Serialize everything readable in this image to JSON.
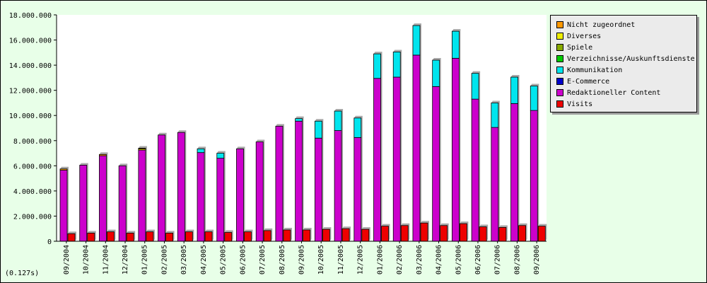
{
  "chart_data": {
    "type": "bar",
    "title": "",
    "xlabel": "",
    "ylabel": "",
    "ylim": [
      0,
      18000000
    ],
    "yticks": [
      "0",
      "2.000.000",
      "4.000.000",
      "6.000.000",
      "8.000.000",
      "10.000.000",
      "12.000.000",
      "14.000.000",
      "16.000.000",
      "18.000.000"
    ],
    "categories": [
      "09/2004",
      "10/2004",
      "11/2004",
      "12/2004",
      "01/2005",
      "02/2005",
      "03/2005",
      "04/2005",
      "05/2005",
      "06/2005",
      "07/2005",
      "08/2005",
      "09/2005",
      "10/2005",
      "11/2005",
      "12/2005",
      "01/2006",
      "02/2006",
      "03/2006",
      "04/2006",
      "05/2006",
      "06/2006",
      "07/2006",
      "08/2006",
      "09/2006"
    ],
    "stacked_series": [
      {
        "name": "Redaktioneller Content",
        "color": "#cc00cc",
        "values": [
          5650000,
          6050000,
          6800000,
          6000000,
          7250000,
          8450000,
          8650000,
          7050000,
          6600000,
          7350000,
          7900000,
          9150000,
          9550000,
          8200000,
          8800000,
          8250000,
          12950000,
          13050000,
          14800000,
          12300000,
          14550000,
          11300000,
          9050000,
          10950000,
          10400000
        ]
      },
      {
        "name": "E-Commerce",
        "color": "#0000cc",
        "values": [
          0,
          0,
          0,
          0,
          0,
          0,
          0,
          0,
          0,
          0,
          0,
          0,
          0,
          0,
          0,
          0,
          0,
          0,
          0,
          0,
          0,
          0,
          0,
          0,
          0
        ]
      },
      {
        "name": "Kommunikation",
        "color": "#00e5ee",
        "values": [
          0,
          0,
          0,
          0,
          0,
          0,
          0,
          300000,
          400000,
          0,
          0,
          0,
          200000,
          1350000,
          1550000,
          1550000,
          1950000,
          2000000,
          2350000,
          2100000,
          2150000,
          2050000,
          1950000,
          2100000,
          1950000
        ]
      },
      {
        "name": "Verzeichnisse/Auskunftsdienste",
        "color": "#00cc00",
        "values": [
          0,
          0,
          0,
          0,
          0,
          0,
          0,
          0,
          0,
          0,
          0,
          0,
          0,
          0,
          0,
          0,
          0,
          0,
          0,
          0,
          0,
          0,
          0,
          0,
          0
        ]
      },
      {
        "name": "Spiele",
        "color": "#88aa00",
        "values": [
          0,
          0,
          0,
          0,
          0,
          0,
          0,
          0,
          0,
          0,
          0,
          0,
          0,
          0,
          0,
          0,
          0,
          0,
          0,
          0,
          0,
          0,
          0,
          0,
          0
        ]
      },
      {
        "name": "Diverses",
        "color": "#eeee00",
        "values": [
          0,
          0,
          0,
          0,
          100000,
          0,
          0,
          0,
          0,
          0,
          0,
          0,
          0,
          0,
          0,
          0,
          0,
          0,
          0,
          0,
          0,
          0,
          0,
          0,
          0
        ]
      },
      {
        "name": "Nicht zugeordnet",
        "color": "#ff9900",
        "values": [
          100000,
          0,
          100000,
          0,
          50000,
          0,
          0,
          0,
          0,
          0,
          0,
          0,
          0,
          0,
          0,
          0,
          0,
          0,
          0,
          0,
          0,
          0,
          0,
          0,
          0
        ]
      }
    ],
    "visits_series": {
      "name": "Visits",
      "color": "#ee0000",
      "values": [
        600000,
        650000,
        750000,
        650000,
        750000,
        650000,
        750000,
        750000,
        700000,
        750000,
        850000,
        900000,
        900000,
        950000,
        1000000,
        950000,
        1200000,
        1250000,
        1450000,
        1250000,
        1400000,
        1150000,
        1100000,
        1250000,
        1200000
      ]
    },
    "legend_placement": "top-right",
    "legend": [
      {
        "label": "Nicht zugeordnet",
        "color": "#ff9900"
      },
      {
        "label": "Diverses",
        "color": "#eeee00"
      },
      {
        "label": "Spiele",
        "color": "#88aa00"
      },
      {
        "label": "Verzeichnisse/Auskunftsdienste",
        "color": "#00cc00"
      },
      {
        "label": "Kommunikation",
        "color": "#00e5ee"
      },
      {
        "label": "E-Commerce",
        "color": "#0000cc"
      },
      {
        "label": "Redaktioneller Content",
        "color": "#cc00cc"
      },
      {
        "label": "Visits",
        "color": "#ee0000"
      }
    ],
    "grid": false
  },
  "footer": {
    "timing": "(0.127s)"
  }
}
